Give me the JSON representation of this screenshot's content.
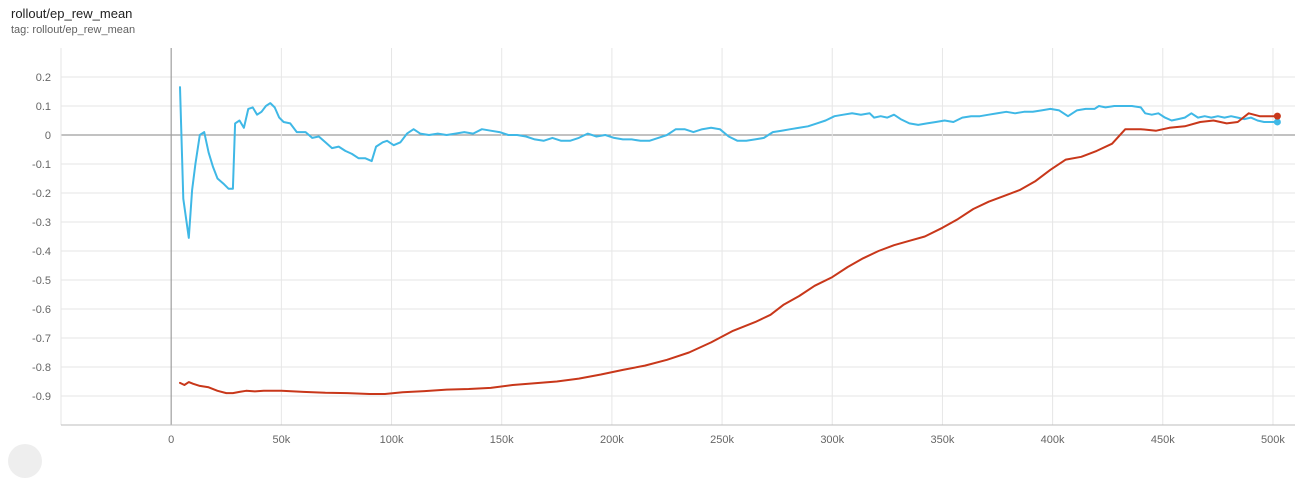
{
  "header": {
    "title": "rollout/ep_rew_mean",
    "tag": "tag: rollout/ep_rew_mean"
  },
  "chart_data": {
    "type": "line",
    "title": "rollout/ep_rew_mean",
    "xlabel": "",
    "ylabel": "",
    "xlim": [
      -50000,
      510000
    ],
    "ylim": [
      -1.0,
      0.3
    ],
    "x_ticks": [
      0,
      50000,
      100000,
      150000,
      200000,
      250000,
      300000,
      350000,
      400000,
      450000,
      500000
    ],
    "x_tick_labels": [
      "0",
      "50k",
      "100k",
      "150k",
      "200k",
      "250k",
      "300k",
      "350k",
      "400k",
      "450k",
      "500k"
    ],
    "y_ticks": [
      0.2,
      0.1,
      0,
      -0.1,
      -0.2,
      -0.3,
      -0.4,
      -0.5,
      -0.6,
      -0.7,
      -0.8,
      -0.9
    ],
    "y_tick_labels": [
      "0.2",
      "0.1",
      "0",
      "-0.1",
      "-0.2",
      "-0.3",
      "-0.4",
      "-0.5",
      "-0.6",
      "-0.7",
      "-0.8",
      "-0.9"
    ],
    "grid": true,
    "series": [
      {
        "color": "#3fb8e6",
        "points": [
          [
            4000,
            0.165
          ],
          [
            5500,
            -0.22
          ],
          [
            8000,
            -0.355
          ],
          [
            9500,
            -0.19
          ],
          [
            11000,
            -0.1
          ],
          [
            13000,
            0.0
          ],
          [
            15000,
            0.01
          ],
          [
            17000,
            -0.06
          ],
          [
            19000,
            -0.11
          ],
          [
            21000,
            -0.15
          ],
          [
            24000,
            -0.17
          ],
          [
            26000,
            -0.185
          ],
          [
            28000,
            -0.185
          ],
          [
            29000,
            0.04
          ],
          [
            31000,
            0.05
          ],
          [
            33000,
            0.025
          ],
          [
            35000,
            0.09
          ],
          [
            37000,
            0.095
          ],
          [
            39000,
            0.07
          ],
          [
            41000,
            0.08
          ],
          [
            43000,
            0.1
          ],
          [
            45000,
            0.11
          ],
          [
            47000,
            0.095
          ],
          [
            49000,
            0.06
          ],
          [
            51000,
            0.045
          ],
          [
            54000,
            0.04
          ],
          [
            57000,
            0.01
          ],
          [
            61000,
            0.01
          ],
          [
            64000,
            -0.01
          ],
          [
            67000,
            -0.005
          ],
          [
            70000,
            -0.025
          ],
          [
            73000,
            -0.045
          ],
          [
            76000,
            -0.04
          ],
          [
            79000,
            -0.055
          ],
          [
            82000,
            -0.065
          ],
          [
            85000,
            -0.08
          ],
          [
            88000,
            -0.08
          ],
          [
            91000,
            -0.09
          ],
          [
            93000,
            -0.04
          ],
          [
            96000,
            -0.025
          ],
          [
            98000,
            -0.02
          ],
          [
            101000,
            -0.035
          ],
          [
            104000,
            -0.025
          ],
          [
            107000,
            0.005
          ],
          [
            110000,
            0.02
          ],
          [
            113000,
            0.005
          ],
          [
            117000,
            0.0
          ],
          [
            121000,
            0.005
          ],
          [
            125000,
            0.0
          ],
          [
            129000,
            0.005
          ],
          [
            133000,
            0.01
          ],
          [
            137000,
            0.005
          ],
          [
            141000,
            0.02
          ],
          [
            145000,
            0.015
          ],
          [
            149000,
            0.01
          ],
          [
            153000,
            0.0
          ],
          [
            157000,
            0.0
          ],
          [
            161000,
            -0.005
          ],
          [
            165000,
            -0.015
          ],
          [
            169000,
            -0.02
          ],
          [
            173000,
            -0.01
          ],
          [
            177000,
            -0.02
          ],
          [
            181000,
            -0.02
          ],
          [
            185000,
            -0.01
          ],
          [
            189000,
            0.005
          ],
          [
            193000,
            -0.005
          ],
          [
            197000,
            0.0
          ],
          [
            201000,
            -0.01
          ],
          [
            205000,
            -0.015
          ],
          [
            209000,
            -0.015
          ],
          [
            213000,
            -0.02
          ],
          [
            217000,
            -0.02
          ],
          [
            221000,
            -0.01
          ],
          [
            225000,
            0.0
          ],
          [
            229000,
            0.02
          ],
          [
            233000,
            0.02
          ],
          [
            237000,
            0.01
          ],
          [
            241000,
            0.02
          ],
          [
            245000,
            0.025
          ],
          [
            249000,
            0.02
          ],
          [
            253000,
            -0.005
          ],
          [
            257000,
            -0.02
          ],
          [
            261000,
            -0.02
          ],
          [
            265000,
            -0.015
          ],
          [
            269000,
            -0.01
          ],
          [
            273000,
            0.01
          ],
          [
            277000,
            0.015
          ],
          [
            281000,
            0.02
          ],
          [
            285000,
            0.025
          ],
          [
            289000,
            0.03
          ],
          [
            293000,
            0.04
          ],
          [
            297000,
            0.05
          ],
          [
            301000,
            0.065
          ],
          [
            305000,
            0.07
          ],
          [
            309000,
            0.075
          ],
          [
            313000,
            0.07
          ],
          [
            317000,
            0.075
          ],
          [
            319000,
            0.06
          ],
          [
            322000,
            0.065
          ],
          [
            325000,
            0.06
          ],
          [
            328000,
            0.07
          ],
          [
            331000,
            0.055
          ],
          [
            335000,
            0.04
          ],
          [
            339000,
            0.035
          ],
          [
            343000,
            0.04
          ],
          [
            347000,
            0.045
          ],
          [
            351000,
            0.05
          ],
          [
            355000,
            0.045
          ],
          [
            359000,
            0.06
          ],
          [
            363000,
            0.065
          ],
          [
            367000,
            0.065
          ],
          [
            371000,
            0.07
          ],
          [
            375000,
            0.075
          ],
          [
            379000,
            0.08
          ],
          [
            383000,
            0.075
          ],
          [
            387000,
            0.08
          ],
          [
            391000,
            0.08
          ],
          [
            395000,
            0.085
          ],
          [
            399000,
            0.09
          ],
          [
            403000,
            0.085
          ],
          [
            407000,
            0.065
          ],
          [
            411000,
            0.085
          ],
          [
            415000,
            0.09
          ],
          [
            419000,
            0.09
          ],
          [
            421000,
            0.1
          ],
          [
            424000,
            0.095
          ],
          [
            428000,
            0.1
          ],
          [
            432000,
            0.1
          ],
          [
            436000,
            0.1
          ],
          [
            440000,
            0.095
          ],
          [
            442000,
            0.075
          ],
          [
            445000,
            0.07
          ],
          [
            448000,
            0.075
          ],
          [
            451000,
            0.06
          ],
          [
            454000,
            0.05
          ],
          [
            457000,
            0.055
          ],
          [
            460000,
            0.06
          ],
          [
            463000,
            0.075
          ],
          [
            466000,
            0.06
          ],
          [
            469000,
            0.065
          ],
          [
            472000,
            0.06
          ],
          [
            475000,
            0.065
          ],
          [
            478000,
            0.06
          ],
          [
            481000,
            0.065
          ],
          [
            484000,
            0.06
          ],
          [
            487000,
            0.055
          ],
          [
            490000,
            0.06
          ],
          [
            493000,
            0.05
          ],
          [
            496000,
            0.045
          ],
          [
            499000,
            0.045
          ],
          [
            502000,
            0.045
          ]
        ]
      },
      {
        "color": "#c8371a",
        "points": [
          [
            4000,
            -0.855
          ],
          [
            6000,
            -0.862
          ],
          [
            8000,
            -0.852
          ],
          [
            10000,
            -0.858
          ],
          [
            13000,
            -0.865
          ],
          [
            17000,
            -0.87
          ],
          [
            21000,
            -0.882
          ],
          [
            25000,
            -0.89
          ],
          [
            28000,
            -0.89
          ],
          [
            31000,
            -0.886
          ],
          [
            34000,
            -0.882
          ],
          [
            38000,
            -0.884
          ],
          [
            42000,
            -0.882
          ],
          [
            50000,
            -0.882
          ],
          [
            60000,
            -0.886
          ],
          [
            70000,
            -0.889
          ],
          [
            80000,
            -0.89
          ],
          [
            90000,
            -0.893
          ],
          [
            97000,
            -0.893
          ],
          [
            105000,
            -0.887
          ],
          [
            115000,
            -0.883
          ],
          [
            125000,
            -0.878
          ],
          [
            135000,
            -0.876
          ],
          [
            145000,
            -0.872
          ],
          [
            155000,
            -0.862
          ],
          [
            165000,
            -0.856
          ],
          [
            175000,
            -0.85
          ],
          [
            185000,
            -0.84
          ],
          [
            195000,
            -0.826
          ],
          [
            205000,
            -0.81
          ],
          [
            215000,
            -0.795
          ],
          [
            225000,
            -0.775
          ],
          [
            235000,
            -0.75
          ],
          [
            245000,
            -0.715
          ],
          [
            255000,
            -0.675
          ],
          [
            265000,
            -0.645
          ],
          [
            272000,
            -0.62
          ],
          [
            278000,
            -0.585
          ],
          [
            285000,
            -0.555
          ],
          [
            292000,
            -0.52
          ],
          [
            300000,
            -0.49
          ],
          [
            307000,
            -0.455
          ],
          [
            314000,
            -0.425
          ],
          [
            321000,
            -0.4
          ],
          [
            328000,
            -0.38
          ],
          [
            335000,
            -0.365
          ],
          [
            342000,
            -0.35
          ],
          [
            350000,
            -0.32
          ],
          [
            357000,
            -0.29
          ],
          [
            364000,
            -0.255
          ],
          [
            371000,
            -0.23
          ],
          [
            378000,
            -0.21
          ],
          [
            385000,
            -0.19
          ],
          [
            392000,
            -0.16
          ],
          [
            399000,
            -0.12
          ],
          [
            406000,
            -0.085
          ],
          [
            413000,
            -0.075
          ],
          [
            420000,
            -0.055
          ],
          [
            427000,
            -0.03
          ],
          [
            433000,
            0.02
          ],
          [
            440000,
            0.02
          ],
          [
            447000,
            0.015
          ],
          [
            453000,
            0.025
          ],
          [
            460000,
            0.03
          ],
          [
            467000,
            0.045
          ],
          [
            473000,
            0.05
          ],
          [
            479000,
            0.04
          ],
          [
            484000,
            0.045
          ],
          [
            489000,
            0.075
          ],
          [
            494000,
            0.065
          ],
          [
            498000,
            0.065
          ],
          [
            502000,
            0.065
          ]
        ]
      }
    ]
  }
}
